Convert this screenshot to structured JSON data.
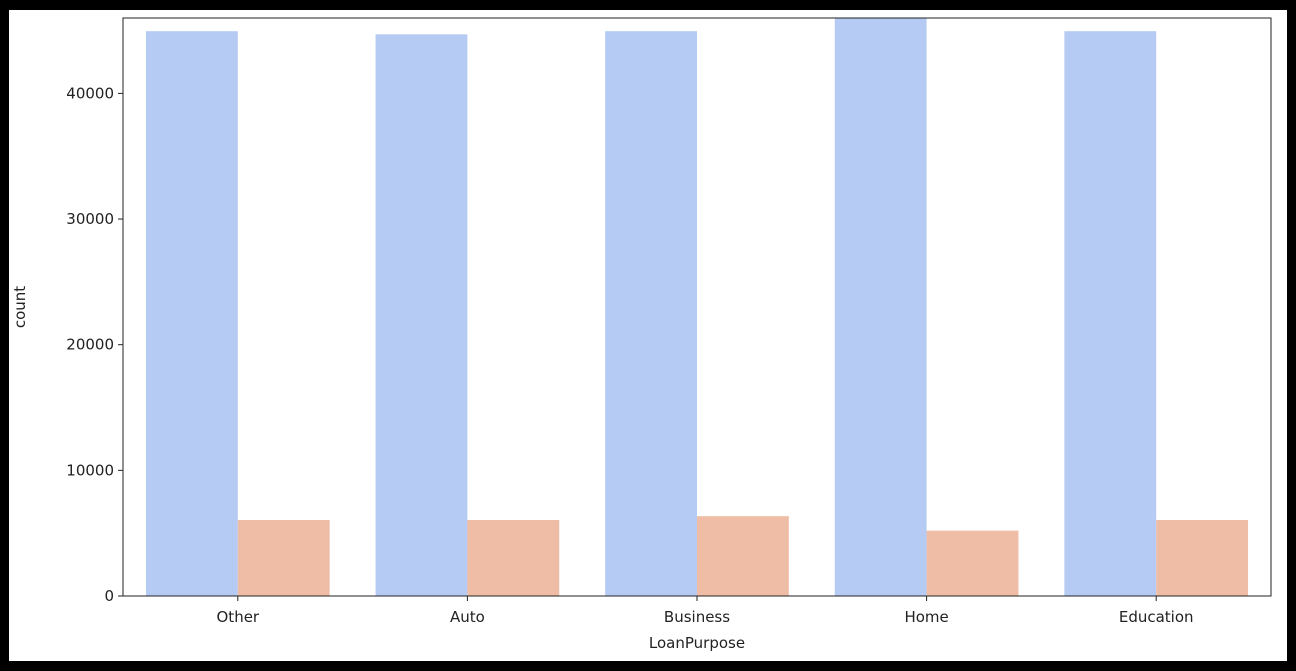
{
  "chart_data": {
    "type": "bar",
    "title": "",
    "xlabel": "LoanPurpose",
    "ylabel": "count",
    "categories": [
      "Other",
      "Auto",
      "Business",
      "Home",
      "Education"
    ],
    "series": [
      {
        "color": "#b5cbf4",
        "values": [
          44950,
          44700,
          44950,
          46000,
          44950
        ]
      },
      {
        "color": "#efbda6",
        "values": [
          6050,
          6050,
          6350,
          5200,
          6050
        ]
      }
    ],
    "ylim": [
      0,
      46000
    ],
    "yticks": [
      0,
      10000,
      20000,
      30000,
      40000
    ],
    "ytick_labels": [
      "0",
      "10000",
      "20000",
      "30000",
      "40000"
    ],
    "grid": false,
    "legend": "none"
  }
}
